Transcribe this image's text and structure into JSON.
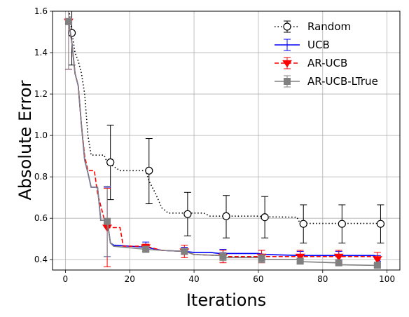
{
  "chart_data": {
    "type": "line",
    "title": "",
    "xlabel": "Iterations",
    "ylabel": "Absolute Error",
    "xlim": [
      -4,
      104
    ],
    "ylim": [
      0.35,
      1.6
    ],
    "xticks": [
      0,
      20,
      40,
      60,
      80,
      100
    ],
    "yticks": [
      0.4,
      0.6,
      0.8,
      1.0,
      1.2,
      1.4,
      1.6
    ],
    "xtick_labels": [
      "0",
      "20",
      "40",
      "60",
      "80",
      "100"
    ],
    "ytick_labels": [
      "0.4",
      "0.6",
      "0.8",
      "1.0",
      "1.2",
      "1.4",
      "1.6"
    ],
    "grid": true,
    "legend_position": "top-right",
    "series": [
      {
        "name": "Random",
        "color": "#000000",
        "line_style": "dotted",
        "marker": "circle-open",
        "line": [
          [
            1,
            1.62
          ],
          [
            2,
            1.5
          ],
          [
            3,
            1.4
          ],
          [
            4,
            1.36
          ],
          [
            5,
            1.3
          ],
          [
            6,
            1.2
          ],
          [
            7,
            1.0
          ],
          [
            8,
            0.905
          ],
          [
            12,
            0.905
          ],
          [
            13,
            0.87
          ],
          [
            14,
            0.86
          ],
          [
            17,
            0.83
          ],
          [
            25,
            0.83
          ],
          [
            26,
            0.78
          ],
          [
            28,
            0.72
          ],
          [
            30,
            0.65
          ],
          [
            32,
            0.625
          ],
          [
            43,
            0.625
          ],
          [
            45,
            0.61
          ],
          [
            60,
            0.61
          ],
          [
            62,
            0.607
          ],
          [
            72,
            0.605
          ],
          [
            73,
            0.575
          ],
          [
            98,
            0.575
          ]
        ],
        "markers": [
          {
            "x": 2,
            "y": 1.495,
            "err_low": 1.34,
            "err_high": 1.62
          },
          {
            "x": 14,
            "y": 0.87,
            "err_low": 0.69,
            "err_high": 1.05
          },
          {
            "x": 26,
            "y": 0.83,
            "err_low": 0.67,
            "err_high": 0.985
          },
          {
            "x": 38,
            "y": 0.62,
            "err_low": 0.515,
            "err_high": 0.725
          },
          {
            "x": 50,
            "y": 0.61,
            "err_low": 0.505,
            "err_high": 0.71
          },
          {
            "x": 62,
            "y": 0.605,
            "err_low": 0.505,
            "err_high": 0.705
          },
          {
            "x": 74,
            "y": 0.573,
            "err_low": 0.48,
            "err_high": 0.665
          },
          {
            "x": 86,
            "y": 0.573,
            "err_low": 0.48,
            "err_high": 0.665
          },
          {
            "x": 98,
            "y": 0.573,
            "err_low": 0.48,
            "err_high": 0.665
          }
        ]
      },
      {
        "name": "UCB",
        "color": "#0000ff",
        "line_style": "solid",
        "marker": "none",
        "line": [
          [
            1,
            1.55
          ],
          [
            2,
            1.45
          ],
          [
            3,
            1.3
          ],
          [
            4,
            1.24
          ],
          [
            5,
            1.05
          ],
          [
            6,
            0.88
          ],
          [
            7,
            0.82
          ],
          [
            8,
            0.75
          ],
          [
            10,
            0.75
          ],
          [
            11,
            0.59
          ],
          [
            13,
            0.59
          ],
          [
            14,
            0.48
          ],
          [
            15,
            0.47
          ],
          [
            20,
            0.465
          ],
          [
            25,
            0.46
          ],
          [
            30,
            0.445
          ],
          [
            37,
            0.44
          ],
          [
            40,
            0.435
          ],
          [
            45,
            0.435
          ],
          [
            48,
            0.43
          ],
          [
            60,
            0.43
          ],
          [
            62,
            0.425
          ],
          [
            73,
            0.42
          ],
          [
            96,
            0.42
          ],
          [
            98,
            0.39
          ]
        ],
        "markers": [
          {
            "x": 1,
            "y": 1.55,
            "err_low": 1.32,
            "err_high": 1.62
          },
          {
            "x": 13,
            "y": 0.58,
            "err_low": 0.415,
            "err_high": 0.75
          },
          {
            "x": 25,
            "y": 0.465,
            "err_low": 0.45,
            "err_high": 0.485
          },
          {
            "x": 37,
            "y": 0.44,
            "err_low": 0.425,
            "err_high": 0.46
          },
          {
            "x": 49,
            "y": 0.43,
            "err_low": 0.41,
            "err_high": 0.45
          },
          {
            "x": 61,
            "y": 0.425,
            "err_low": 0.405,
            "err_high": 0.445
          },
          {
            "x": 73,
            "y": 0.42,
            "err_low": 0.4,
            "err_high": 0.44
          },
          {
            "x": 85,
            "y": 0.42,
            "err_low": 0.4,
            "err_high": 0.44
          },
          {
            "x": 97,
            "y": 0.4,
            "err_low": 0.38,
            "err_high": 0.42
          }
        ]
      },
      {
        "name": "AR-UCB",
        "color": "#ff0000",
        "line_style": "dashed",
        "marker": "triangle-down",
        "line": [
          [
            1,
            1.55
          ],
          [
            2,
            1.45
          ],
          [
            3,
            1.3
          ],
          [
            4,
            1.24
          ],
          [
            5,
            1.05
          ],
          [
            6,
            0.9
          ],
          [
            7,
            0.83
          ],
          [
            9,
            0.83
          ],
          [
            10,
            0.72
          ],
          [
            11,
            0.66
          ],
          [
            12,
            0.6
          ],
          [
            13,
            0.555
          ],
          [
            17,
            0.555
          ],
          [
            18,
            0.465
          ],
          [
            25,
            0.465
          ],
          [
            30,
            0.445
          ],
          [
            37,
            0.44
          ],
          [
            40,
            0.425
          ],
          [
            48,
            0.42
          ],
          [
            50,
            0.415
          ],
          [
            60,
            0.415
          ],
          [
            62,
            0.415
          ],
          [
            73,
            0.415
          ],
          [
            96,
            0.415
          ],
          [
            98,
            0.4
          ]
        ],
        "markers": [
          {
            "x": 1,
            "y": 1.55,
            "err_low": 1.32,
            "err_high": 1.62
          },
          {
            "x": 13,
            "y": 0.555,
            "err_low": 0.365,
            "err_high": 0.745
          },
          {
            "x": 25,
            "y": 0.46,
            "err_low": 0.44,
            "err_high": 0.475
          },
          {
            "x": 37,
            "y": 0.44,
            "err_low": 0.41,
            "err_high": 0.47
          },
          {
            "x": 49,
            "y": 0.415,
            "err_low": 0.385,
            "err_high": 0.445
          },
          {
            "x": 61,
            "y": 0.415,
            "err_low": 0.385,
            "err_high": 0.445
          },
          {
            "x": 73,
            "y": 0.415,
            "err_low": 0.385,
            "err_high": 0.445
          },
          {
            "x": 85,
            "y": 0.415,
            "err_low": 0.385,
            "err_high": 0.445
          },
          {
            "x": 97,
            "y": 0.403,
            "err_low": 0.37,
            "err_high": 0.435
          }
        ]
      },
      {
        "name": "AR-UCB-LTrue",
        "color": "#808080",
        "line_style": "solid",
        "marker": "square",
        "line": [
          [
            1,
            1.55
          ],
          [
            2,
            1.45
          ],
          [
            3,
            1.3
          ],
          [
            4,
            1.24
          ],
          [
            5,
            1.05
          ],
          [
            6,
            0.88
          ],
          [
            7,
            0.82
          ],
          [
            8,
            0.75
          ],
          [
            10,
            0.75
          ],
          [
            11,
            0.59
          ],
          [
            13,
            0.59
          ],
          [
            14,
            0.48
          ],
          [
            15,
            0.465
          ],
          [
            25,
            0.45
          ],
          [
            30,
            0.445
          ],
          [
            37,
            0.44
          ],
          [
            40,
            0.425
          ],
          [
            48,
            0.42
          ],
          [
            50,
            0.41
          ],
          [
            60,
            0.41
          ],
          [
            62,
            0.4
          ],
          [
            72,
            0.4
          ],
          [
            74,
            0.39
          ],
          [
            84,
            0.385
          ],
          [
            86,
            0.375
          ],
          [
            98,
            0.372
          ]
        ],
        "markers": [
          {
            "x": 1,
            "y": 1.55,
            "err_low": 1.32,
            "err_high": 1.62
          },
          {
            "x": 13,
            "y": 0.585,
            "err_low": 0.415,
            "err_high": 0.755
          },
          {
            "x": 25,
            "y": 0.45,
            "err_low": 0.435,
            "err_high": 0.465
          },
          {
            "x": 37,
            "y": 0.44,
            "err_low": 0.425,
            "err_high": 0.455
          },
          {
            "x": 49,
            "y": 0.415,
            "err_low": 0.395,
            "err_high": 0.435
          },
          {
            "x": 61,
            "y": 0.405,
            "err_low": 0.385,
            "err_high": 0.425
          },
          {
            "x": 73,
            "y": 0.393,
            "err_low": 0.38,
            "err_high": 0.405
          },
          {
            "x": 85,
            "y": 0.385,
            "err_low": 0.375,
            "err_high": 0.395
          },
          {
            "x": 97,
            "y": 0.373,
            "err_low": 0.363,
            "err_high": 0.383
          }
        ]
      }
    ]
  }
}
